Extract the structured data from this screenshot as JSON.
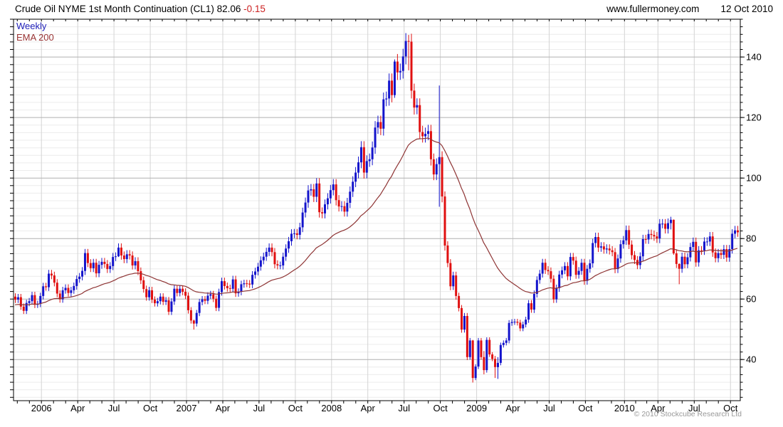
{
  "header": {
    "title": "Crude Oil NYME 1st Month Continuation (CL1) 82.06",
    "change": "-0.15",
    "website": "www.fullermoney.com",
    "date": "12 Oct 2010"
  },
  "legend": {
    "series": "Weekly",
    "overlay": "EMA 200"
  },
  "footer": {
    "copyright": "© 2010 Stockcube Research Ltd"
  },
  "colors": {
    "up_candle": "#1414cc",
    "down_candle": "#e01010",
    "ema_line": "#8e3434",
    "legend_weekly": "#2222bb",
    "legend_ema": "#993333",
    "change_text": "#cc2222",
    "grid_major": "#b3b3b3",
    "grid_minor": "#ececec",
    "grid_vertical": "#d4d4d4",
    "axis": "#000000",
    "copyright": "#999999"
  },
  "chart_data": {
    "type": "candlestick-with-line-overlay",
    "title": "Crude Oil NYME 1st Month Continuation (CL1)",
    "frequency": "Weekly",
    "last_price": 82.06,
    "change": -0.15,
    "as_of": "12 Oct 2010",
    "ylim": [
      26.4,
      152.5
    ],
    "yticks": [
      40,
      60,
      80,
      100,
      120,
      140
    ],
    "y_minor_step": 2.5,
    "grid": "on",
    "legend_position": "top-left",
    "xticks": [
      {
        "week": 10,
        "label": "2006"
      },
      {
        "week": 23,
        "label": "Apr"
      },
      {
        "week": 36,
        "label": "Jul"
      },
      {
        "week": 49,
        "label": "Oct"
      },
      {
        "week": 62,
        "label": "2007"
      },
      {
        "week": 75,
        "label": "Apr"
      },
      {
        "week": 88,
        "label": "Jul"
      },
      {
        "week": 101,
        "label": "Oct"
      },
      {
        "week": 114,
        "label": "2008"
      },
      {
        "week": 127,
        "label": "Apr"
      },
      {
        "week": 140,
        "label": "Jul"
      },
      {
        "week": 153,
        "label": "Oct"
      },
      {
        "week": 166,
        "label": "2009"
      },
      {
        "week": 179,
        "label": "Apr"
      },
      {
        "week": 192,
        "label": "Jul"
      },
      {
        "week": 205,
        "label": "Oct"
      },
      {
        "week": 219,
        "label": "2010"
      },
      {
        "week": 231,
        "label": "Apr"
      },
      {
        "week": 244,
        "label": "Jul"
      },
      {
        "week": 257,
        "label": "Oct"
      }
    ],
    "first_open": 60.8,
    "closes": [
      59.8,
      60.6,
      57.5,
      56.1,
      58.7,
      59.3,
      61.3,
      58.1,
      58.4,
      61.0,
      64.2,
      63.9,
      68.4,
      67.8,
      65.4,
      61.8,
      59.9,
      62.9,
      63.7,
      62.0,
      62.9,
      64.3,
      66.6,
      67.4,
      69.3,
      75.2,
      71.9,
      70.2,
      72.0,
      68.5,
      71.3,
      72.3,
      71.6,
      69.9,
      70.9,
      73.9,
      74.1,
      77.0,
      74.4,
      73.2,
      74.8,
      74.4,
      71.1,
      72.5,
      69.2,
      66.2,
      63.3,
      60.6,
      62.9,
      59.8,
      58.6,
      59.3,
      60.8,
      59.1,
      59.6,
      55.8,
      59.2,
      63.4,
      62.0,
      63.4,
      62.4,
      61.1,
      56.3,
      52.9,
      51.9,
      55.4,
      59.0,
      59.9,
      59.4,
      61.1,
      61.6,
      60.1,
      57.1,
      62.3,
      65.9,
      64.3,
      63.6,
      63.4,
      66.5,
      61.9,
      62.4,
      64.9,
      65.2,
      65.1,
      64.8,
      68.0,
      69.1,
      70.7,
      72.8,
      74.0,
      75.6,
      77.0,
      75.5,
      71.5,
      71.1,
      71.1,
      74.0,
      76.7,
      79.1,
      81.6,
      81.7,
      81.2,
      83.7,
      88.6,
      91.9,
      95.9,
      96.3,
      93.8,
      98.2,
      88.7,
      88.3,
      91.3,
      93.3,
      96.0,
      97.9,
      92.7,
      90.6,
      90.7,
      88.9,
      91.8,
      95.5,
      98.8,
      101.8,
      105.2,
      110.2,
      101.8,
      105.6,
      106.2,
      110.1,
      116.7,
      118.5,
      116.3,
      126.0,
      126.3,
      132.2,
      127.4,
      138.5,
      134.9,
      135.4,
      140.2,
      145.3,
      145.1,
      128.9,
      123.3,
      124.1,
      115.2,
      113.8,
      114.6,
      115.5,
      106.2,
      101.2,
      104.6,
      106.9,
      93.9,
      77.7,
      71.9,
      64.2,
      67.8,
      61.0,
      57.0,
      49.9,
      54.4,
      40.8,
      46.3,
      33.9,
      37.7,
      46.3,
      40.8,
      36.5,
      46.5,
      41.7,
      40.2,
      37.5,
      38.9,
      44.8,
      45.5,
      46.3,
      52.1,
      52.4,
      52.5,
      52.2,
      50.3,
      51.6,
      53.2,
      58.6,
      56.5,
      61.7,
      66.3,
      68.4,
      72.0,
      69.6,
      69.2,
      66.7,
      59.9,
      63.6,
      68.1,
      69.5,
      70.9,
      67.5,
      73.9,
      72.7,
      68.0,
      69.3,
      72.0,
      66.0,
      70.0,
      71.8,
      78.5,
      80.5,
      77.0,
      77.4,
      76.4,
      76.7,
      76.1,
      75.5,
      69.9,
      73.4,
      78.1,
      79.4,
      82.8,
      78.0,
      74.5,
      72.9,
      71.2,
      74.1,
      79.8,
      79.7,
      81.5,
      81.2,
      80.7,
      80.0,
      84.9,
      84.9,
      83.2,
      85.1,
      86.2,
      75.1,
      71.6,
      70.0,
      74.0,
      71.5,
      73.8,
      77.2,
      78.9,
      72.1,
      76.1,
      76.0,
      79.0,
      79.0,
      80.7,
      75.4,
      73.5,
      75.2,
      74.6,
      76.5,
      73.7,
      76.5,
      81.6,
      82.7,
      82.06
    ],
    "wick_overrides": {
      "37": [
        78.4,
        73.9
      ],
      "64": [
        53.2,
        49.9
      ],
      "136": [
        139.2,
        126.5
      ],
      "141": [
        147.3,
        135.6
      ],
      "152": [
        130.6,
        90.5
      ],
      "164": [
        46.5,
        32.4
      ],
      "168": [
        42.8,
        35.1
      ],
      "172": [
        41.2,
        33.9
      ],
      "173": [
        40.8,
        33.6
      ],
      "235": [
        87.2,
        83.0
      ],
      "236": [
        86.3,
        74.6
      ],
      "238": [
        71.8,
        64.9
      ]
    },
    "ema": {
      "label": "EMA 200",
      "alpha": 0.0487,
      "seed": 58.0
    }
  }
}
